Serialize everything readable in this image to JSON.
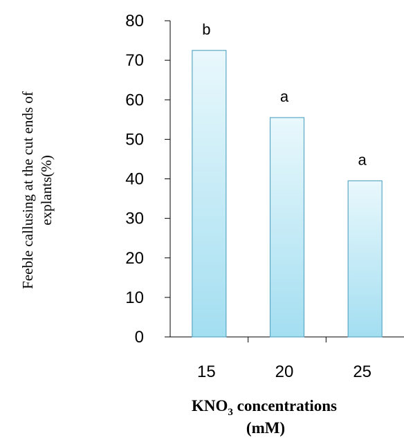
{
  "chart_data": {
    "type": "bar",
    "categories": [
      "15",
      "20",
      "25"
    ],
    "values": [
      72.5,
      55.5,
      39.5
    ],
    "significance_labels": [
      "b",
      "a",
      "a"
    ],
    "ylabel_line1": "Feeble callusing at the cut ends of",
    "ylabel_line2": "explants(%)",
    "xlabel_main": "KNO",
    "xlabel_sub": "3",
    "xlabel_rest": " concentrations",
    "xlabel_line2": "(mM)",
    "ylim": [
      0,
      80
    ],
    "yticks": [
      "0",
      "10",
      "20",
      "30",
      "40",
      "50",
      "60",
      "70",
      "80"
    ],
    "bar_fill_top": "#e9f8fc",
    "bar_fill_bottom": "#a3def1",
    "bar_stroke": "#5aa8c4",
    "grid": false,
    "legend": "none"
  }
}
